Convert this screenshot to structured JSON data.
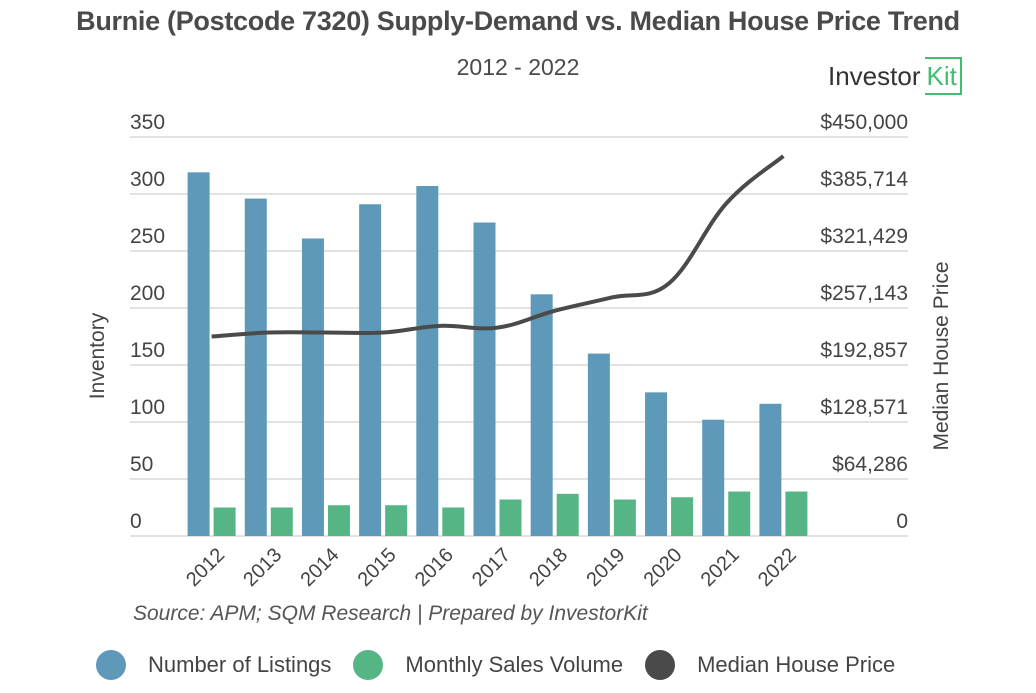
{
  "header": {
    "title": "Burnie (Postcode 7320) Supply-Demand vs. Median House Price Trend",
    "subtitle": "2012 - 2022",
    "logo_text": "Investor",
    "logo_kit": "Kit"
  },
  "footer": {
    "source": "Source: APM; SQM Research | Prepared by InvestorKit"
  },
  "colors": {
    "listings": "#5f99b9",
    "sales": "#56b585",
    "price": "#4a4a4a",
    "grid": "#d9d9d9",
    "brand": "#3fbf6f"
  },
  "chart_data": {
    "type": "bar",
    "title": "Burnie (Postcode 7320) Supply-Demand vs. Median House Price Trend",
    "subtitle": "2012 - 2022",
    "categories": [
      "2012",
      "2013",
      "2014",
      "2015",
      "2016",
      "2017",
      "2018",
      "2019",
      "2020",
      "2021",
      "2022"
    ],
    "ylabel": "Inventory",
    "y2label": "Median House Price",
    "ylim": [
      0,
      350
    ],
    "y2lim": [
      0,
      450000
    ],
    "yticks": [
      "0",
      "50",
      "100",
      "150",
      "200",
      "250",
      "300",
      "350"
    ],
    "y2ticks": [
      "0",
      "$64,286",
      "$128,571",
      "$192,857",
      "$257,143",
      "$321,429",
      "$385,714",
      "$450,000"
    ],
    "grid": true,
    "legend_position": "bottom",
    "series": [
      {
        "name": "Number of Listings",
        "type": "bar",
        "axis": "left",
        "values": [
          319,
          296,
          261,
          291,
          307,
          275,
          212,
          160,
          126,
          102,
          116
        ]
      },
      {
        "name": "Monthly Sales Volume",
        "type": "bar",
        "axis": "left",
        "values": [
          25,
          25,
          27,
          27,
          25,
          32,
          37,
          32,
          34,
          39,
          39
        ]
      },
      {
        "name": "Median House Price",
        "type": "line",
        "axis": "right",
        "values": [
          225000,
          229500,
          229500,
          229500,
          237000,
          235000,
          254000,
          269000,
          285000,
          375000,
          428500
        ]
      }
    ]
  }
}
